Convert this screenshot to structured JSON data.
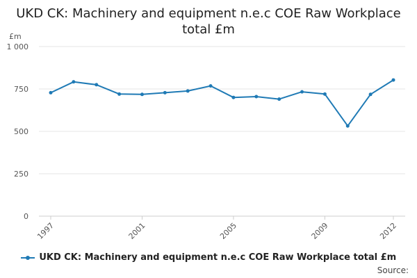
{
  "chart_data": {
    "type": "line",
    "title": "UKD CK: Machinery and equipment n.e.c COE Raw Workplace total £m",
    "unit_label": "£m",
    "ylim": [
      0,
      1000
    ],
    "yticks": [
      {
        "value": 0,
        "label": "0"
      },
      {
        "value": 250,
        "label": "250"
      },
      {
        "value": 500,
        "label": "500"
      },
      {
        "value": 750,
        "label": "750"
      },
      {
        "value": 1000,
        "label": "1 000"
      }
    ],
    "xlim": [
      1997,
      2012
    ],
    "xticks": [
      {
        "value": 1997,
        "label": "1997"
      },
      {
        "value": 2001,
        "label": "2001"
      },
      {
        "value": 2005,
        "label": "2005"
      },
      {
        "value": 2009,
        "label": "2009"
      },
      {
        "value": 2012,
        "label": "2012"
      }
    ],
    "grid": "horizontal",
    "series": [
      {
        "name": "UKD CK: Machinery and equipment n.e.c COE Raw Workplace total £m",
        "color": "#1f7ab5",
        "x": [
          1997,
          1998,
          1999,
          2000,
          2001,
          2002,
          2003,
          2004,
          2005,
          2006,
          2007,
          2008,
          2009,
          2010,
          2011,
          2012
        ],
        "y": [
          728,
          792,
          775,
          720,
          718,
          728,
          738,
          768,
          700,
          705,
          690,
          733,
          720,
          532,
          718,
          803
        ]
      }
    ],
    "legend_position": "bottom",
    "source_label": "Source:"
  }
}
